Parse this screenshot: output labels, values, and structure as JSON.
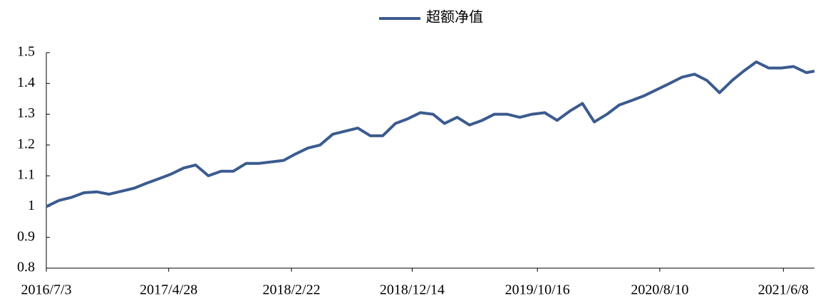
{
  "chart_data": {
    "type": "line",
    "x": [
      "2016/7/3",
      "2016/8/3",
      "2016/9/3",
      "2016/10/3",
      "2016/11/3",
      "2016/12/3",
      "2017/1/3",
      "2017/2/3",
      "2017/3/3",
      "2017/4/3",
      "2017/5/3",
      "2017/6/3",
      "2017/7/3",
      "2017/8/3",
      "2017/9/3",
      "2017/10/3",
      "2017/11/3",
      "2017/12/3",
      "2018/1/3",
      "2018/2/3",
      "2018/3/3",
      "2018/4/3",
      "2018/5/3",
      "2018/6/3",
      "2018/7/3",
      "2018/8/3",
      "2018/9/3",
      "2018/10/3",
      "2018/11/3",
      "2018/12/3",
      "2019/1/3",
      "2019/2/3",
      "2019/3/3",
      "2019/4/3",
      "2019/5/3",
      "2019/6/3",
      "2019/7/3",
      "2019/8/3",
      "2019/9/3",
      "2019/10/3",
      "2019/11/3",
      "2019/12/3",
      "2020/1/3",
      "2020/2/3",
      "2020/3/3",
      "2020/4/3",
      "2020/5/3",
      "2020/6/3",
      "2020/7/3",
      "2020/8/3",
      "2020/9/3",
      "2020/10/3",
      "2020/11/3",
      "2020/12/3",
      "2021/1/3",
      "2021/2/3",
      "2021/3/3",
      "2021/4/3",
      "2021/5/3",
      "2021/6/3",
      "2021/7/3",
      "2021/8/3",
      "2021/8/23"
    ],
    "series": [
      {
        "name": "超额净值",
        "color": "#3b5b8f",
        "values": [
          1.0,
          1.02,
          1.03,
          1.045,
          1.048,
          1.04,
          1.05,
          1.06,
          1.075,
          1.09,
          1.105,
          1.125,
          1.135,
          1.1,
          1.115,
          1.115,
          1.14,
          1.14,
          1.145,
          1.15,
          1.17,
          1.19,
          1.2,
          1.235,
          1.245,
          1.255,
          1.23,
          1.23,
          1.27,
          1.285,
          1.305,
          1.3,
          1.27,
          1.29,
          1.265,
          1.28,
          1.3,
          1.3,
          1.29,
          1.3,
          1.305,
          1.28,
          1.31,
          1.335,
          1.275,
          1.3,
          1.33,
          1.345,
          1.36,
          1.38,
          1.4,
          1.42,
          1.43,
          1.41,
          1.37,
          1.41,
          1.44,
          1.47,
          1.45,
          1.45,
          1.455,
          1.435,
          1.44
        ]
      }
    ],
    "xlim": [
      "2016/7/3",
      "2021/8/23"
    ],
    "xticks": [
      "2016/7/3",
      "2017/4/28",
      "2018/2/22",
      "2018/12/14",
      "2019/10/16",
      "2020/8/10",
      "2021/6/8"
    ],
    "ylim": [
      0.8,
      1.5
    ],
    "yticks": [
      0.8,
      0.9,
      1,
      1.1,
      1.2,
      1.3,
      1.4,
      1.5
    ],
    "legend": "top"
  }
}
